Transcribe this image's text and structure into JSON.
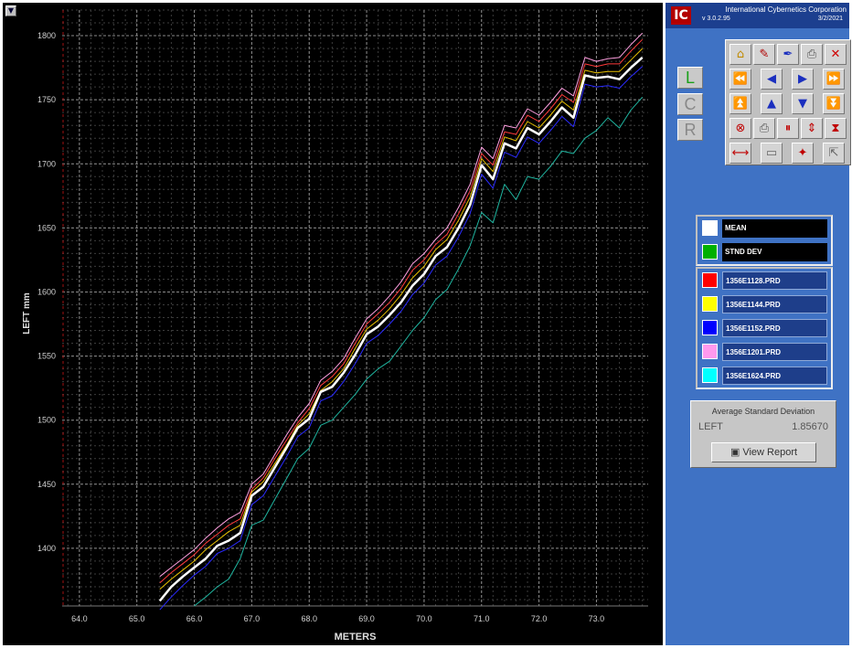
{
  "chart_data": {
    "type": "line",
    "xlabel": "METERS",
    "ylabel": "LEFT",
    "ylabel_unit": "mm",
    "xlim": [
      63.7,
      73.9
    ],
    "ylim": [
      1355,
      1820
    ],
    "x_ticks": [
      "64.0",
      "65.0",
      "66.0",
      "67.0",
      "68.0",
      "69.0",
      "70.0",
      "71.0",
      "72.0",
      "73.0"
    ],
    "y_ticks": [
      "1400",
      "1450",
      "1500",
      "1550",
      "1600",
      "1650",
      "1700",
      "1750",
      "1800"
    ],
    "grid": true,
    "series": [
      {
        "name": "MEAN",
        "color": "#ffffff",
        "width": 2.5,
        "x": [
          65.4,
          65.6,
          65.8,
          66.0,
          66.2,
          66.4,
          66.6,
          66.8,
          67.0,
          67.2,
          67.4,
          67.6,
          67.8,
          68.0,
          68.2,
          68.4,
          68.6,
          68.8,
          69.0,
          69.2,
          69.4,
          69.6,
          69.8,
          70.0,
          70.2,
          70.4,
          70.6,
          70.8,
          71.0,
          71.2,
          71.4,
          71.6,
          71.8,
          72.0,
          72.2,
          72.4,
          72.6,
          72.8,
          73.0,
          73.2,
          73.4,
          73.6,
          73.8
        ],
        "y": [
          1359,
          1370,
          1378,
          1385,
          1392,
          1402,
          1406,
          1412,
          1441,
          1448,
          1463,
          1478,
          1494,
          1501,
          1522,
          1526,
          1537,
          1551,
          1567,
          1573,
          1582,
          1592,
          1605,
          1614,
          1628,
          1635,
          1650,
          1668,
          1699,
          1688,
          1716,
          1712,
          1728,
          1723,
          1733,
          1744,
          1736,
          1769,
          1767,
          1768,
          1766,
          1775,
          1783
        ]
      },
      {
        "name": "1356E1128.PRD",
        "color": "#ff3b3b",
        "width": 1,
        "x": [
          65.4,
          65.6,
          65.8,
          66.0,
          66.2,
          66.4,
          66.6,
          66.8,
          67.0,
          67.2,
          67.4,
          67.6,
          67.8,
          68.0,
          68.2,
          68.4,
          68.6,
          68.8,
          69.0,
          69.2,
          69.4,
          69.6,
          69.8,
          70.0,
          70.2,
          70.4,
          70.6,
          70.8,
          71.0,
          71.2,
          71.4,
          71.6,
          71.8,
          72.0,
          72.2,
          72.4,
          72.6,
          72.8,
          73.0,
          73.2,
          73.4,
          73.6,
          73.8
        ],
        "y": [
          1373,
          1381,
          1388,
          1395,
          1404,
          1411,
          1418,
          1423,
          1446,
          1455,
          1470,
          1484,
          1498,
          1509,
          1527,
          1534,
          1544,
          1560,
          1575,
          1583,
          1592,
          1603,
          1617,
          1625,
          1637,
          1645,
          1661,
          1679,
          1708,
          1699,
          1725,
          1723,
          1738,
          1733,
          1743,
          1754,
          1748,
          1778,
          1776,
          1778,
          1778,
          1788,
          1797
        ]
      },
      {
        "name": "1356E1144.PRD",
        "color": "#e8c000",
        "width": 1,
        "x": [
          65.4,
          65.6,
          65.8,
          66.0,
          66.2,
          66.4,
          66.6,
          66.8,
          67.0,
          67.2,
          67.4,
          67.6,
          67.8,
          68.0,
          68.2,
          68.4,
          68.6,
          68.8,
          69.0,
          69.2,
          69.4,
          69.6,
          69.8,
          70.0,
          70.2,
          70.4,
          70.6,
          70.8,
          71.0,
          71.2,
          71.4,
          71.6,
          71.8,
          72.0,
          72.2,
          72.4,
          72.6,
          72.8,
          73.0,
          73.2,
          73.4,
          73.6,
          73.8
        ],
        "y": [
          1368,
          1376,
          1383,
          1390,
          1399,
          1406,
          1413,
          1418,
          1444,
          1452,
          1466,
          1480,
          1496,
          1505,
          1523,
          1530,
          1540,
          1556,
          1571,
          1578,
          1587,
          1598,
          1611,
          1620,
          1633,
          1641,
          1656,
          1674,
          1704,
          1694,
          1721,
          1718,
          1733,
          1728,
          1738,
          1749,
          1742,
          1773,
          1771,
          1772,
          1772,
          1781,
          1790
        ]
      },
      {
        "name": "1356E1152.PRD",
        "color": "#2a2aff",
        "width": 1,
        "x": [
          65.4,
          65.6,
          65.8,
          66.0,
          66.2,
          66.4,
          66.6,
          66.8,
          67.0,
          67.2,
          67.4,
          67.6,
          67.8,
          68.0,
          68.2,
          68.4,
          68.6,
          68.8,
          69.0,
          69.2,
          69.4,
          69.6,
          69.8,
          70.0,
          70.2,
          70.4,
          70.6,
          70.8,
          71.0,
          71.2,
          71.4,
          71.6,
          71.8,
          72.0,
          72.2,
          72.4,
          72.6,
          72.8,
          73.0,
          73.2,
          73.4,
          73.6,
          73.8
        ],
        "y": [
          1352,
          1362,
          1371,
          1379,
          1386,
          1396,
          1400,
          1406,
          1434,
          1441,
          1456,
          1471,
          1487,
          1494,
          1515,
          1519,
          1530,
          1544,
          1560,
          1566,
          1575,
          1585,
          1598,
          1607,
          1621,
          1628,
          1643,
          1661,
          1692,
          1681,
          1709,
          1705,
          1721,
          1716,
          1726,
          1737,
          1729,
          1762,
          1760,
          1761,
          1759,
          1768,
          1776
        ]
      },
      {
        "name": "1356E1201.PRD",
        "color": "#ff9fe0",
        "width": 1,
        "x": [
          65.4,
          65.6,
          65.8,
          66.0,
          66.2,
          66.4,
          66.6,
          66.8,
          67.0,
          67.2,
          67.4,
          67.6,
          67.8,
          68.0,
          68.2,
          68.4,
          68.6,
          68.8,
          69.0,
          69.2,
          69.4,
          69.6,
          69.8,
          70.0,
          70.2,
          70.4,
          70.6,
          70.8,
          71.0,
          71.2,
          71.4,
          71.6,
          71.8,
          72.0,
          72.2,
          72.4,
          72.6,
          72.8,
          73.0,
          73.2,
          73.4,
          73.6,
          73.8
        ],
        "y": [
          1378,
          1385,
          1392,
          1399,
          1408,
          1416,
          1423,
          1428,
          1450,
          1458,
          1473,
          1488,
          1502,
          1513,
          1531,
          1538,
          1548,
          1564,
          1579,
          1587,
          1597,
          1608,
          1622,
          1630,
          1641,
          1650,
          1666,
          1684,
          1713,
          1704,
          1730,
          1728,
          1743,
          1738,
          1748,
          1759,
          1753,
          1783,
          1780,
          1782,
          1783,
          1793,
          1802
        ]
      },
      {
        "name": "1356E1624.PRD",
        "color": "#1fb5a0",
        "width": 1,
        "x": [
          66.0,
          66.2,
          66.4,
          66.6,
          66.8,
          67.0,
          67.2,
          67.4,
          67.6,
          67.8,
          68.0,
          68.2,
          68.4,
          68.6,
          68.8,
          69.0,
          69.2,
          69.4,
          69.6,
          69.8,
          70.0,
          70.2,
          70.4,
          70.6,
          70.8,
          71.0,
          71.2,
          71.4,
          71.6,
          71.8,
          72.0,
          72.2,
          72.4,
          72.6,
          72.8,
          73.0,
          73.2,
          73.4,
          73.6,
          73.8
        ],
        "y": [
          1355,
          1362,
          1370,
          1376,
          1392,
          1418,
          1422,
          1438,
          1454,
          1470,
          1478,
          1496,
          1500,
          1510,
          1520,
          1532,
          1540,
          1546,
          1558,
          1570,
          1580,
          1594,
          1602,
          1618,
          1636,
          1662,
          1654,
          1684,
          1672,
          1690,
          1688,
          1698,
          1710,
          1708,
          1720,
          1726,
          1736,
          1728,
          1742,
          1752
        ]
      }
    ]
  },
  "side_panel": {
    "company": "International Cybernetics Corporation",
    "version": "v 3.0.2.95",
    "date": "3/2/2021",
    "logo_text": "IC",
    "lcr": {
      "l": "L",
      "c": "C",
      "r": "R"
    },
    "toolbar_icons": [
      [
        "open-icon",
        "edit-icon",
        "pen-icon",
        "print-icon",
        "close-icon"
      ],
      [
        "first-icon",
        "prev-icon",
        "next-icon",
        "last-icon"
      ],
      [
        "top-icon",
        "up-icon",
        "down-icon",
        "bottom-icon"
      ],
      [
        "stop-icon",
        "printer-icon",
        "pause-icon",
        "updown-icon",
        "hourglass-icon"
      ],
      [
        "range-icon",
        "frame-icon",
        "target-icon",
        "export-icon"
      ]
    ],
    "legend": [
      {
        "label": "MEAN",
        "color": "#ffffff"
      },
      {
        "label": "STND DEV",
        "color": "#00b000"
      }
    ],
    "files": [
      {
        "label": "1356E1128.PRD",
        "color": "#ff0000"
      },
      {
        "label": "1356E1144.PRD",
        "color": "#ffff00"
      },
      {
        "label": "1356E1152.PRD",
        "color": "#0000ff"
      },
      {
        "label": "1356E1201.PRD",
        "color": "#ff99ee"
      },
      {
        "label": "1356E1624.PRD",
        "color": "#00ffff"
      }
    ],
    "stat": {
      "title": "Average Standard Deviation",
      "name": "LEFT",
      "value": "1.85670",
      "button": "View Report"
    }
  }
}
